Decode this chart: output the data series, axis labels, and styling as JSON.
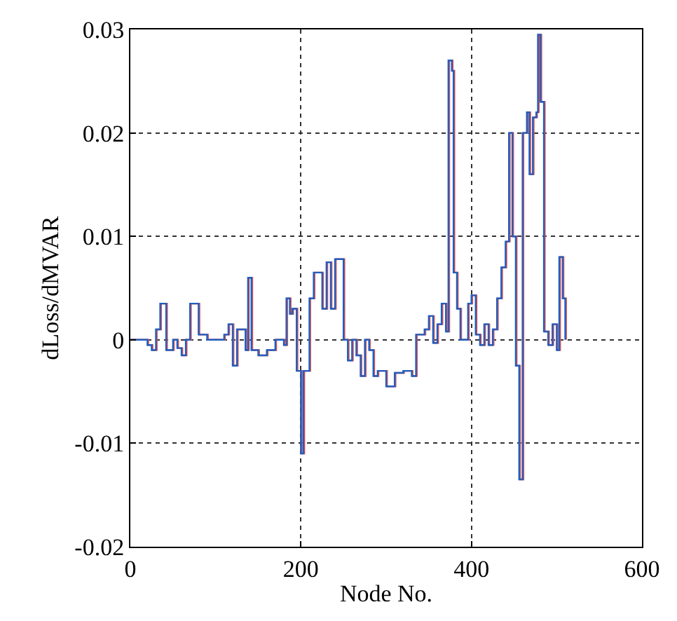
{
  "chart_data": {
    "type": "step",
    "xlabel": "Node No.",
    "ylabel": "dLoss/dMVAR",
    "xlim": [
      0,
      600
    ],
    "xticks": [
      0,
      200,
      400,
      600
    ],
    "ylim": [
      -0.02,
      0.03
    ],
    "yticks": [
      -0.02,
      -0.01,
      0,
      0.01,
      0.02,
      0.03
    ],
    "grid": true,
    "line_style": "solid",
    "series": [
      {
        "color": "#e05050",
        "x": [
          1,
          21,
          26,
          31,
          36,
          41,
          43,
          51,
          56,
          61,
          66,
          71,
          79,
          81,
          91,
          101,
          111,
          116,
          121,
          126,
          136,
          139,
          143,
          151,
          161,
          171,
          181,
          184,
          188,
          191,
          196,
          201,
          204,
          211,
          216,
          223,
          226,
          231,
          236,
          241,
          246,
          251,
          256,
          261,
          266,
          271,
          276,
          281,
          286,
          291,
          301,
          311,
          321,
          331,
          336,
          341,
          346,
          351,
          356,
          361,
          366,
          371,
          374,
          378,
          380,
          384,
          388,
          393,
          397,
          401,
          406,
          411,
          416,
          421,
          426,
          431,
          436,
          441,
          445,
          449,
          453,
          457,
          461,
          466,
          469,
          473,
          477,
          479,
          482,
          486,
          491,
          496,
          501,
          504,
          508,
          511
        ],
        "values": [
          0,
          -0.0005,
          -0.001,
          0.001,
          0.0035,
          0.0035,
          -0.001,
          0,
          -0.0008,
          -0.0015,
          0,
          0.0035,
          0.0035,
          0.0005,
          0,
          0,
          0.0005,
          0.0015,
          -0.0025,
          0.001,
          -0.001,
          0.006,
          -0.001,
          -0.0015,
          -0.001,
          0,
          -0.0005,
          0.004,
          0.0025,
          0.003,
          -0.003,
          -0.011,
          -0.003,
          0.004,
          0.0065,
          0.0065,
          0.003,
          0.0075,
          0.003,
          0.0078,
          0.0078,
          0,
          -0.002,
          0,
          -0.0015,
          -0.0035,
          0,
          -0.001,
          -0.0035,
          -0.003,
          -0.0045,
          -0.0032,
          -0.003,
          -0.0035,
          0.0005,
          0.0005,
          0.001,
          0.0023,
          -0.0003,
          0.0015,
          0.0035,
          0.0008,
          0.027,
          0.026,
          0.0065,
          0.003,
          0,
          0,
          0.0035,
          0.0043,
          0.0005,
          -0.0005,
          0.0015,
          -0.0005,
          0.001,
          0.004,
          0.007,
          0.0095,
          0.02,
          0.01,
          -0.0025,
          -0.0135,
          0.02,
          0.022,
          0.016,
          0.0215,
          0.022,
          0.0295,
          0.023,
          0.0008,
          -0.0005,
          0.0015,
          -0.001,
          0.008,
          0.004,
          0
        ]
      },
      {
        "color": "#1f5fbf",
        "x": [
          0,
          20,
          25,
          30,
          35,
          40,
          42,
          50,
          55,
          60,
          65,
          70,
          78,
          80,
          90,
          100,
          110,
          115,
          120,
          125,
          135,
          138,
          142,
          150,
          160,
          170,
          180,
          183,
          187,
          190,
          195,
          200,
          203,
          210,
          215,
          222,
          225,
          230,
          235,
          240,
          245,
          250,
          255,
          260,
          265,
          270,
          275,
          280,
          285,
          290,
          300,
          310,
          320,
          330,
          335,
          340,
          345,
          350,
          355,
          360,
          365,
          370,
          373,
          377,
          379,
          383,
          387,
          392,
          396,
          400,
          405,
          410,
          415,
          420,
          425,
          430,
          435,
          440,
          444,
          448,
          452,
          456,
          460,
          465,
          468,
          472,
          476,
          478,
          481,
          485,
          490,
          495,
          500,
          503,
          507,
          510
        ],
        "values": [
          0,
          -0.0005,
          -0.001,
          0.001,
          0.0035,
          0.0035,
          -0.001,
          0,
          -0.0008,
          -0.0015,
          0,
          0.0035,
          0.0035,
          0.0005,
          0,
          0,
          0.0005,
          0.0015,
          -0.0025,
          0.001,
          -0.001,
          0.006,
          -0.001,
          -0.0015,
          -0.001,
          0,
          -0.0005,
          0.004,
          0.0025,
          0.003,
          -0.003,
          -0.011,
          -0.003,
          0.004,
          0.0065,
          0.0065,
          0.003,
          0.0075,
          0.003,
          0.0078,
          0.0078,
          0,
          -0.002,
          0,
          -0.0015,
          -0.0035,
          0,
          -0.001,
          -0.0035,
          -0.003,
          -0.0045,
          -0.0032,
          -0.003,
          -0.0035,
          0.0005,
          0.0005,
          0.001,
          0.0023,
          -0.0003,
          0.0015,
          0.0035,
          0.0008,
          0.027,
          0.026,
          0.0065,
          0.003,
          0,
          0,
          0.0035,
          0.0043,
          0.0005,
          -0.0005,
          0.0015,
          -0.0005,
          0.001,
          0.004,
          0.007,
          0.0095,
          0.02,
          0.01,
          -0.0025,
          -0.0135,
          0.02,
          0.022,
          0.016,
          0.0215,
          0.022,
          0.0295,
          0.023,
          0.0008,
          -0.0005,
          0.0015,
          -0.001,
          0.008,
          0.004,
          0
        ]
      }
    ]
  }
}
